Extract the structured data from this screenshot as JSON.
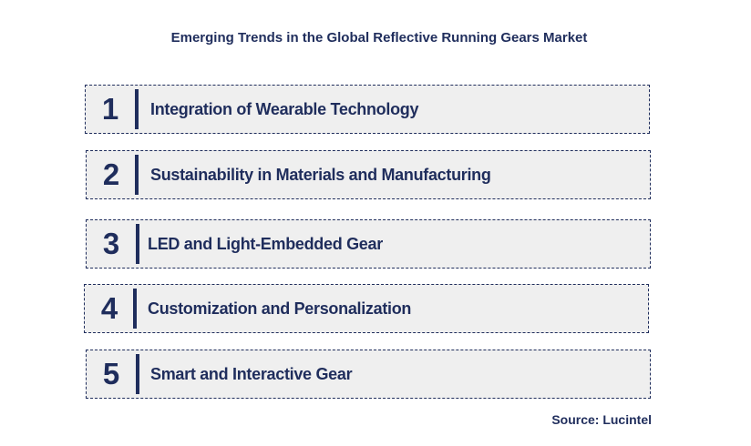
{
  "title": "Emerging Trends in the Global Reflective Running Gears Market",
  "trends": [
    {
      "number": "1",
      "label": "Integration of Wearable Technology"
    },
    {
      "number": "2",
      "label": "Sustainability in Materials and Manufacturing"
    },
    {
      "number": "3",
      "label": "LED and Light-Embedded Gear"
    },
    {
      "number": "4",
      "label": "Customization and Personalization"
    },
    {
      "number": "5",
      "label": "Smart and Interactive Gear"
    }
  ],
  "source": "Source: Lucintel",
  "colors": {
    "text": "#1f2d5c",
    "box_fill": "#efefef",
    "box_border": "#1f2d5c"
  }
}
